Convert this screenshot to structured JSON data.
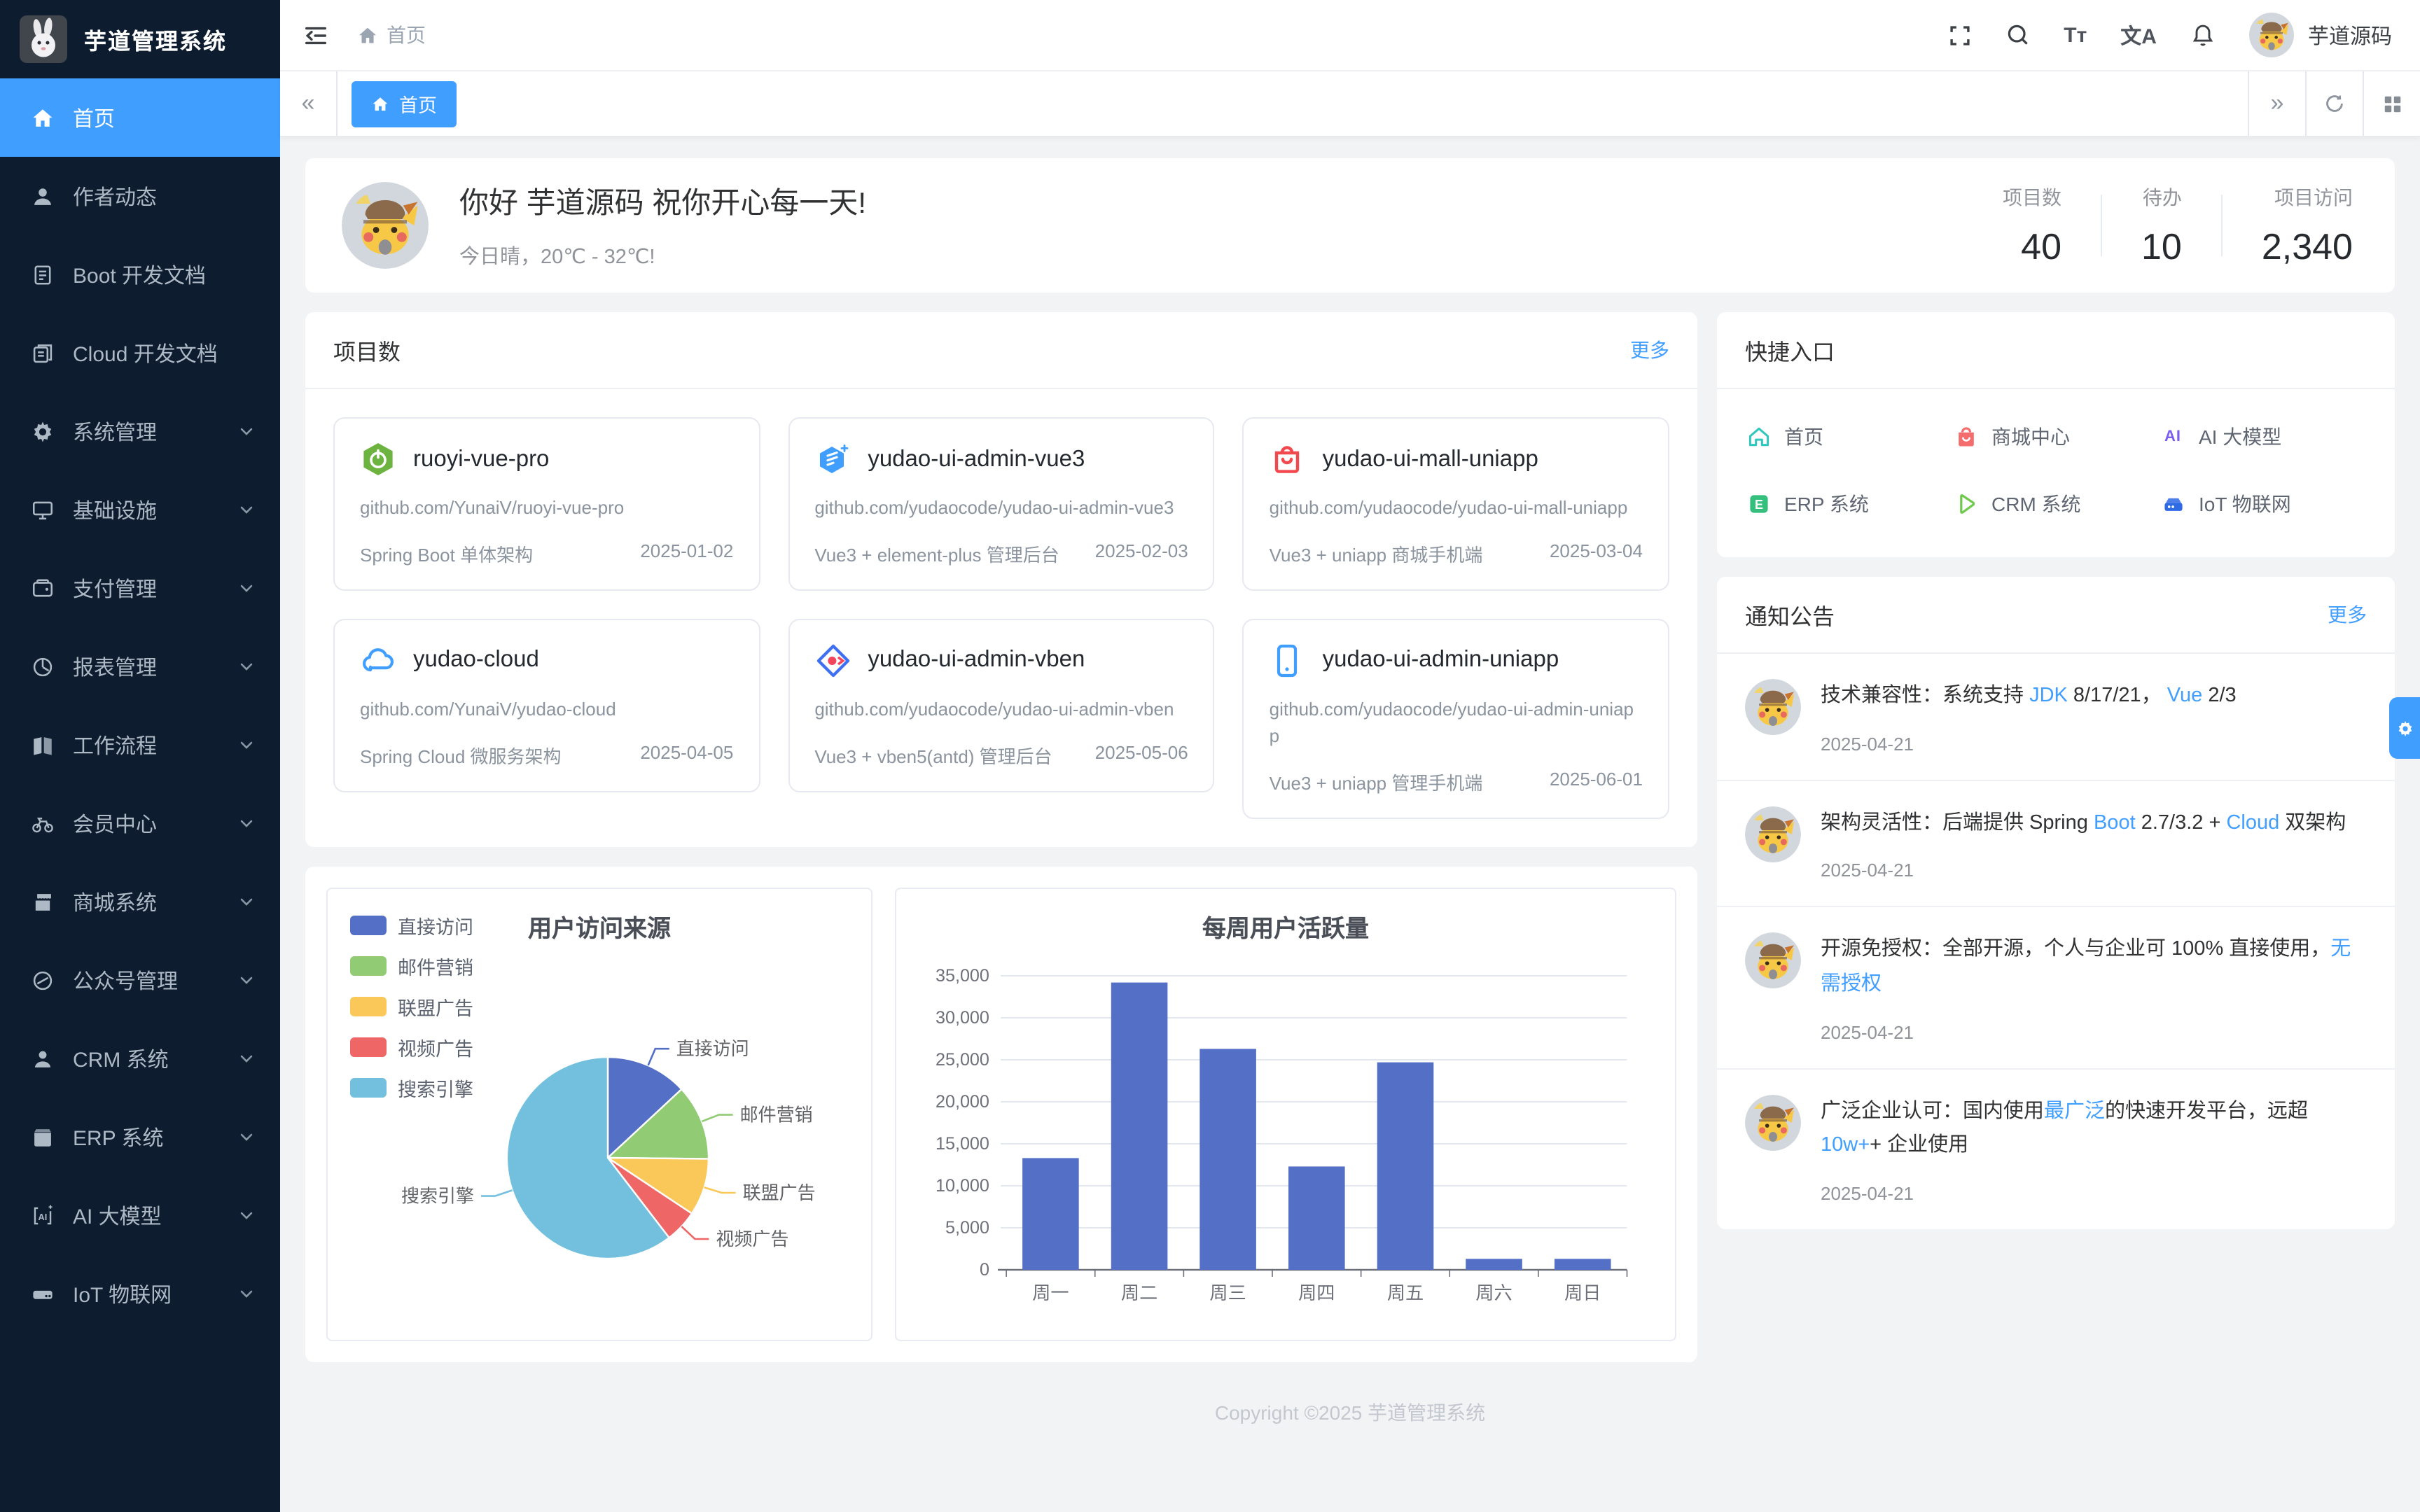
{
  "app": {
    "title": "芋道管理系统",
    "username": "芋道源码"
  },
  "topbar": {
    "breadcrumb_home": "首页",
    "font_icon_text": "Tт",
    "lang_icon_text": "文A"
  },
  "tabbar": {
    "active_tab": "首页",
    "collapse_left_glyph": "«",
    "expand_right_glyph": "»"
  },
  "sidebar": {
    "items": [
      {
        "label": "首页",
        "icon": "home-icon",
        "active": true,
        "expandable": false
      },
      {
        "label": "作者动态",
        "icon": "user-icon",
        "active": false,
        "expandable": false
      },
      {
        "label": "Boot 开发文档",
        "icon": "document-icon",
        "active": false,
        "expandable": false
      },
      {
        "label": "Cloud 开发文档",
        "icon": "documents-icon",
        "active": false,
        "expandable": false
      },
      {
        "label": "系统管理",
        "icon": "gear-icon",
        "active": false,
        "expandable": true
      },
      {
        "label": "基础设施",
        "icon": "monitor-icon",
        "active": false,
        "expandable": true
      },
      {
        "label": "支付管理",
        "icon": "wallet-icon",
        "active": false,
        "expandable": true
      },
      {
        "label": "报表管理",
        "icon": "pie-icon",
        "active": false,
        "expandable": true
      },
      {
        "label": "工作流程",
        "icon": "workflow-icon",
        "active": false,
        "expandable": true
      },
      {
        "label": "会员中心",
        "icon": "bicycle-icon",
        "active": false,
        "expandable": true
      },
      {
        "label": "商城系统",
        "icon": "shop-icon",
        "active": false,
        "expandable": true
      },
      {
        "label": "公众号管理",
        "icon": "compass-icon",
        "active": false,
        "expandable": true
      },
      {
        "label": "CRM 系统",
        "icon": "person-icon",
        "active": false,
        "expandable": true
      },
      {
        "label": "ERP 系统",
        "icon": "box-icon",
        "active": false,
        "expandable": true
      },
      {
        "label": "AI 大模型",
        "icon": "ai-icon",
        "active": false,
        "expandable": true
      },
      {
        "label": "IoT 物联网",
        "icon": "server-icon",
        "active": false,
        "expandable": true
      }
    ]
  },
  "greeting": {
    "title": "你好 芋道源码 祝你开心每一天!",
    "subtitle": "今日晴，20℃ - 32℃!",
    "stats": [
      {
        "label": "项目数",
        "value": "40"
      },
      {
        "label": "待办",
        "value": "10"
      },
      {
        "label": "项目访问",
        "value": "2,340"
      }
    ]
  },
  "projects": {
    "title": "项目数",
    "more": "更多",
    "cards": [
      {
        "icon": "spring-boot-icon",
        "name": "ruoyi-vue-pro",
        "url": "github.com/YunaiV/ruoyi-vue-pro",
        "desc": "Spring Boot 单体架构",
        "date": "2025-01-02"
      },
      {
        "icon": "vue3-hexagon-icon",
        "name": "yudao-ui-admin-vue3",
        "url": "github.com/yudaocode/yudao-ui-admin-vue3",
        "desc": "Vue3 + element-plus 管理后台",
        "date": "2025-02-03"
      },
      {
        "icon": "shopping-bag-icon",
        "name": "yudao-ui-mall-uniapp",
        "url": "github.com/yudaocode/yudao-ui-mall-uniapp",
        "desc": "Vue3 + uniapp 商城手机端",
        "date": "2025-03-04"
      },
      {
        "icon": "cloud-icon",
        "name": "yudao-cloud",
        "url": "github.com/YunaiV/yudao-cloud",
        "desc": "Spring Cloud 微服务架构",
        "date": "2025-04-05"
      },
      {
        "icon": "vben-diamond-icon",
        "name": "yudao-ui-admin-vben",
        "url": "github.com/yudaocode/yudao-ui-admin-vben",
        "desc": "Vue3 + vben5(antd) 管理后台",
        "date": "2025-05-06"
      },
      {
        "icon": "mobile-phone-icon",
        "name": "yudao-ui-admin-uniapp",
        "url": "github.com/yudaocode/yudao-ui-admin-uniapp",
        "desc": "Vue3 + uniapp 管理手机端",
        "date": "2025-06-01"
      }
    ]
  },
  "quick": {
    "title": "快捷入口",
    "items": [
      {
        "label": "首页",
        "icon": "home-outline-icon",
        "color": "#2fc7bf"
      },
      {
        "label": "商城中心",
        "icon": "shopping-bag-icon",
        "color": "#f56c6c"
      },
      {
        "label": "AI 大模型",
        "icon": "ai-letters-icon",
        "color": "#7b5cf0"
      },
      {
        "label": "ERP 系统",
        "icon": "erp-square-icon",
        "color": "#34c07c"
      },
      {
        "label": "CRM 系统",
        "icon": "crm-triangle-icon",
        "color": "#6fca4c"
      },
      {
        "label": "IoT 物联网",
        "icon": "iot-server-icon",
        "color": "#2f6ae5"
      }
    ]
  },
  "notices": {
    "title": "通知公告",
    "more": "更多",
    "items": [
      {
        "date": "2025-04-21",
        "segments": [
          {
            "text": "技术兼容性：系统支持 ",
            "link": false
          },
          {
            "text": "JDK",
            "link": true
          },
          {
            "text": " 8/17/21， ",
            "link": false
          },
          {
            "text": "Vue",
            "link": true
          },
          {
            "text": " 2/3",
            "link": false
          }
        ]
      },
      {
        "date": "2025-04-21",
        "segments": [
          {
            "text": "架构灵活性：后端提供 Spring ",
            "link": false
          },
          {
            "text": "Boot",
            "link": true
          },
          {
            "text": " 2.7/3.2 + ",
            "link": false
          },
          {
            "text": "Cloud",
            "link": true
          },
          {
            "text": " 双架构",
            "link": false
          }
        ]
      },
      {
        "date": "2025-04-21",
        "segments": [
          {
            "text": "开源免授权：全部开源，个人与企业可 100% 直接使用，",
            "link": false
          },
          {
            "text": "无需授权",
            "link": true
          }
        ]
      },
      {
        "date": "2025-04-21",
        "segments": [
          {
            "text": "广泛企业认可：国内使用",
            "link": false
          },
          {
            "text": "最广泛",
            "link": true
          },
          {
            "text": "的快速开发平台，远超 ",
            "link": false
          },
          {
            "text": "10w+",
            "link": true
          },
          {
            "text": "+ 企业使用",
            "link": false
          }
        ]
      }
    ]
  },
  "footer": {
    "text": "Copyright ©2025 芋道管理系统"
  },
  "colors": {
    "accent": "#409EFF",
    "sidebar_bg": "#0d1c2e",
    "link_blue": "#409EFF"
  },
  "chart_data": [
    {
      "type": "pie",
      "title": "用户访问来源",
      "legend_position": "top-left",
      "legend": [
        "直接访问",
        "邮件营销",
        "联盟广告",
        "视频广告",
        "搜索引擎"
      ],
      "series": [
        {
          "name": "直接访问",
          "value": 335,
          "color": "#5470C6"
        },
        {
          "name": "邮件营销",
          "value": 310,
          "color": "#91CC75"
        },
        {
          "name": "联盟广告",
          "value": 234,
          "color": "#FAC858"
        },
        {
          "name": "视频广告",
          "value": 135,
          "color": "#EE6666"
        },
        {
          "name": "搜索引擎",
          "value": 1548,
          "color": "#73C0DE"
        }
      ]
    },
    {
      "type": "bar",
      "title": "每周用户活跃量",
      "categories": [
        "周一",
        "周二",
        "周三",
        "周四",
        "周五",
        "周六",
        "周日"
      ],
      "values": [
        13300,
        34200,
        26300,
        12300,
        24700,
        1300,
        1300
      ],
      "ylim": [
        0,
        35000
      ],
      "ytick_step": 5000,
      "bar_color": "#5470C6",
      "grid": true,
      "xlabel": "",
      "ylabel": ""
    }
  ]
}
